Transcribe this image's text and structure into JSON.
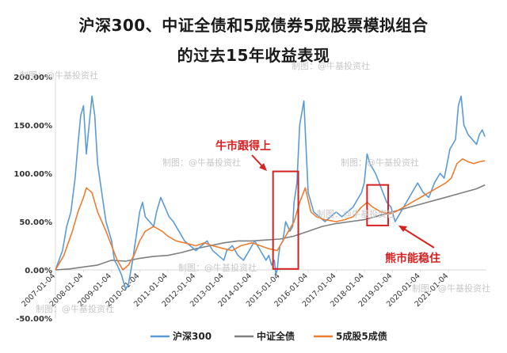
{
  "title_line1": "沪深300、中证全债和5成债券5成股票模拟组合",
  "title_line2": "的过去15年收益表现",
  "watermark": "制图：@牛基投资社",
  "annotations": {
    "bull": "牛市跟得上",
    "bear": "熊市能稳住"
  },
  "colors": {
    "hs300": "#5b9bd5",
    "bond": "#7f7f7f",
    "mix": "#ed7d31",
    "annotation": "#d62021",
    "axis": "#d9d9d9"
  },
  "chart_data": {
    "type": "line",
    "title": "沪深300、中证全债和5成债券5成股票模拟组合的过去15年收益表现",
    "xlabel": "",
    "ylabel": "",
    "ylim": [
      -50,
      200
    ],
    "yticks": [
      -50,
      0,
      50,
      100,
      150,
      200
    ],
    "ytick_labels": [
      "-50.00%",
      "0.00%",
      "50.00%",
      "100.00%",
      "150.00%",
      "200.00%"
    ],
    "x_unit": "years since 2007-01-04",
    "xlim": [
      0,
      15.35
    ],
    "xtick_labels": [
      "2007-01-04",
      "2008-01-04",
      "2009-01-04",
      "2010-01-04",
      "2011-01-04",
      "2012-01-04",
      "2013-01-04",
      "2014-01-04",
      "2015-01-04",
      "2016-01-04",
      "2017-01-04",
      "2018-01-04",
      "2019-01-04",
      "2020-01-04",
      "2021-01-04"
    ],
    "grid": false,
    "legend_position": "bottom",
    "series": [
      {
        "name": "沪深300",
        "x": [
          0,
          0.25,
          0.4,
          0.55,
          0.7,
          0.8,
          0.9,
          1.0,
          1.1,
          1.2,
          1.3,
          1.4,
          1.5,
          1.6,
          1.7,
          1.8,
          1.9,
          2.0,
          2.1,
          2.2,
          2.35,
          2.5,
          2.6,
          2.75,
          2.9,
          3.0,
          3.1,
          3.2,
          3.35,
          3.5,
          3.6,
          3.75,
          3.9,
          4.05,
          4.2,
          4.4,
          4.6,
          4.8,
          5.0,
          5.2,
          5.4,
          5.6,
          5.8,
          6.0,
          6.1,
          6.3,
          6.5,
          6.7,
          6.9,
          7.1,
          7.3,
          7.5,
          7.6,
          7.7,
          7.8,
          7.85,
          7.9,
          7.95,
          8.0,
          8.1,
          8.2,
          8.35,
          8.45,
          8.5,
          8.6,
          8.7,
          8.85,
          9.0,
          9.2,
          9.4,
          9.6,
          9.8,
          10.0,
          10.2,
          10.4,
          10.6,
          10.8,
          10.9,
          11.0,
          11.1,
          11.2,
          11.4,
          11.6,
          11.8,
          11.95,
          12.1,
          12.3,
          12.5,
          12.7,
          12.9,
          13.1,
          13.3,
          13.5,
          13.7,
          13.85,
          13.95,
          14.05,
          14.15,
          14.25,
          14.35,
          14.45,
          14.55,
          14.7,
          14.85,
          15.0,
          15.1,
          15.2,
          15.3
        ],
        "y": [
          0,
          20,
          45,
          60,
          95,
          130,
          160,
          170,
          120,
          150,
          180,
          160,
          110,
          90,
          70,
          50,
          40,
          30,
          10,
          5,
          -5,
          -20,
          -15,
          10,
          40,
          60,
          70,
          55,
          50,
          45,
          60,
          75,
          65,
          55,
          50,
          40,
          30,
          25,
          20,
          25,
          30,
          20,
          15,
          10,
          20,
          25,
          15,
          10,
          20,
          30,
          20,
          10,
          15,
          5,
          10,
          -5,
          0,
          15,
          25,
          30,
          50,
          40,
          45,
          70,
          90,
          150,
          175,
          80,
          60,
          55,
          50,
          55,
          60,
          55,
          60,
          65,
          75,
          80,
          90,
          120,
          110,
          100,
          85,
          70,
          65,
          50,
          60,
          70,
          80,
          90,
          80,
          75,
          90,
          100,
          95,
          110,
          125,
          130,
          135,
          170,
          180,
          150,
          140,
          135,
          130,
          140,
          145,
          138
        ],
        "color": "#5b9bd5"
      },
      {
        "name": "中证全债",
        "x": [
          0,
          0.5,
          1.0,
          1.5,
          2.0,
          2.5,
          3.0,
          3.5,
          4.0,
          4.5,
          5.0,
          5.5,
          6.0,
          6.5,
          7.0,
          7.5,
          8.0,
          8.5,
          9.0,
          9.5,
          10.0,
          10.5,
          11.0,
          11.5,
          12.0,
          12.5,
          13.0,
          13.5,
          14.0,
          14.5,
          15.0,
          15.3
        ],
        "y": [
          0,
          1,
          3,
          5,
          10,
          9,
          12,
          14,
          15,
          18,
          22,
          25,
          28,
          30,
          30,
          31,
          32,
          35,
          40,
          45,
          48,
          50,
          52,
          56,
          60,
          64,
          68,
          72,
          76,
          80,
          84,
          88
        ],
        "color": "#7f7f7f"
      },
      {
        "name": "5成股5成债",
        "x": [
          0,
          0.3,
          0.6,
          0.8,
          1.0,
          1.1,
          1.3,
          1.5,
          1.8,
          2.0,
          2.2,
          2.4,
          2.6,
          2.8,
          3.0,
          3.2,
          3.5,
          3.8,
          4.0,
          4.3,
          4.6,
          5.0,
          5.3,
          5.6,
          6.0,
          6.3,
          6.6,
          7.0,
          7.3,
          7.6,
          7.9,
          8.1,
          8.3,
          8.5,
          8.7,
          8.9,
          9.1,
          9.3,
          9.6,
          10.0,
          10.3,
          10.6,
          10.9,
          11.1,
          11.3,
          11.6,
          11.9,
          12.1,
          12.4,
          12.7,
          13.0,
          13.3,
          13.6,
          13.9,
          14.1,
          14.3,
          14.5,
          14.7,
          14.9,
          15.1,
          15.3
        ],
        "y": [
          0,
          15,
          40,
          60,
          75,
          85,
          80,
          60,
          40,
          25,
          10,
          0,
          5,
          15,
          30,
          40,
          45,
          40,
          35,
          30,
          28,
          25,
          28,
          25,
          22,
          20,
          25,
          28,
          25,
          22,
          20,
          30,
          40,
          50,
          70,
          85,
          60,
          55,
          52,
          50,
          52,
          55,
          65,
          70,
          65,
          60,
          58,
          60,
          65,
          70,
          75,
          80,
          85,
          90,
          95,
          110,
          115,
          112,
          110,
          112,
          113
        ],
        "color": "#ed7d31"
      }
    ],
    "annotations": [
      {
        "text": "牛市跟得上",
        "x_range": [
          7.75,
          8.65
        ],
        "y_range": [
          1,
          102
        ]
      },
      {
        "text": "熊市能稳住",
        "x_range": [
          11.1,
          11.85
        ],
        "y_range": [
          46,
          88
        ]
      }
    ]
  }
}
